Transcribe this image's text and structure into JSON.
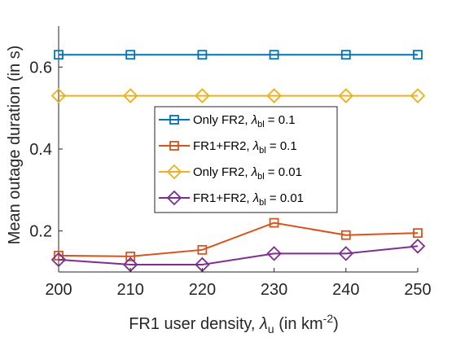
{
  "chart_data": {
    "type": "line",
    "xlabel": {
      "prefix": "FR1 user density, ",
      "symbol": "λ",
      "sub": "u",
      "mid": " (in km",
      "sup": "-2",
      "suffix": ")"
    },
    "ylabel": "Mean outage duration (in s)",
    "x": [
      200,
      210,
      220,
      230,
      240,
      250
    ],
    "xlim": [
      200,
      250
    ],
    "ylim": [
      0.1,
      0.7
    ],
    "x_ticks": [
      200,
      210,
      220,
      230,
      240,
      250
    ],
    "y_ticks": [
      0.2,
      0.4,
      0.6
    ],
    "grid": false,
    "legend_position": "center",
    "series": [
      {
        "name": "Only FR2, λbl = 0.1",
        "label_prefix": "Only FR2, ",
        "label_sub": "bl",
        "label_value": " = 0.1",
        "color": "#0072BD",
        "marker": "square",
        "values": [
          0.63,
          0.63,
          0.63,
          0.63,
          0.63,
          0.63
        ]
      },
      {
        "name": "FR1+FR2, λbl = 0.1",
        "label_prefix": "FR1+FR2, ",
        "label_sub": "bl",
        "label_value": " = 0.1",
        "color": "#D95319",
        "marker": "square",
        "values": [
          0.14,
          0.138,
          0.154,
          0.22,
          0.19,
          0.195
        ]
      },
      {
        "name": "Only FR2, λbl = 0.01",
        "label_prefix": "Only FR2, ",
        "label_sub": "bl",
        "label_value": " = 0.01",
        "color": "#EDB120",
        "marker": "diamond",
        "values": [
          0.53,
          0.53,
          0.53,
          0.53,
          0.53,
          0.53
        ]
      },
      {
        "name": "FR1+FR2, λbl = 0.01",
        "label_prefix": "FR1+FR2, ",
        "label_sub": "bl",
        "label_value": " = 0.01",
        "color": "#7E2F8E",
        "marker": "diamond",
        "values": [
          0.13,
          0.118,
          0.118,
          0.145,
          0.145,
          0.163
        ]
      }
    ]
  }
}
